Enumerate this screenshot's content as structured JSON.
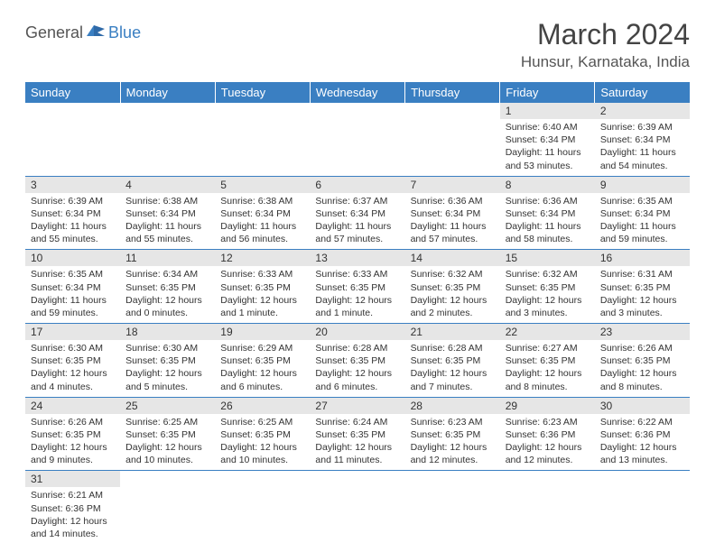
{
  "logo": {
    "general": "General",
    "blue": "Blue"
  },
  "header": {
    "title": "March 2024",
    "location": "Hunsur, Karnataka, India"
  },
  "colors": {
    "header_bg": "#3a7fc2",
    "header_text": "#ffffff",
    "daynum_bg": "#e6e6e6",
    "border": "#3a7fc2",
    "text": "#333333"
  },
  "weekdays": [
    "Sunday",
    "Monday",
    "Tuesday",
    "Wednesday",
    "Thursday",
    "Friday",
    "Saturday"
  ],
  "weeks": [
    [
      null,
      null,
      null,
      null,
      null,
      {
        "n": "1",
        "sunrise": "Sunrise: 6:40 AM",
        "sunset": "Sunset: 6:34 PM",
        "daylight": "Daylight: 11 hours and 53 minutes."
      },
      {
        "n": "2",
        "sunrise": "Sunrise: 6:39 AM",
        "sunset": "Sunset: 6:34 PM",
        "daylight": "Daylight: 11 hours and 54 minutes."
      }
    ],
    [
      {
        "n": "3",
        "sunrise": "Sunrise: 6:39 AM",
        "sunset": "Sunset: 6:34 PM",
        "daylight": "Daylight: 11 hours and 55 minutes."
      },
      {
        "n": "4",
        "sunrise": "Sunrise: 6:38 AM",
        "sunset": "Sunset: 6:34 PM",
        "daylight": "Daylight: 11 hours and 55 minutes."
      },
      {
        "n": "5",
        "sunrise": "Sunrise: 6:38 AM",
        "sunset": "Sunset: 6:34 PM",
        "daylight": "Daylight: 11 hours and 56 minutes."
      },
      {
        "n": "6",
        "sunrise": "Sunrise: 6:37 AM",
        "sunset": "Sunset: 6:34 PM",
        "daylight": "Daylight: 11 hours and 57 minutes."
      },
      {
        "n": "7",
        "sunrise": "Sunrise: 6:36 AM",
        "sunset": "Sunset: 6:34 PM",
        "daylight": "Daylight: 11 hours and 57 minutes."
      },
      {
        "n": "8",
        "sunrise": "Sunrise: 6:36 AM",
        "sunset": "Sunset: 6:34 PM",
        "daylight": "Daylight: 11 hours and 58 minutes."
      },
      {
        "n": "9",
        "sunrise": "Sunrise: 6:35 AM",
        "sunset": "Sunset: 6:34 PM",
        "daylight": "Daylight: 11 hours and 59 minutes."
      }
    ],
    [
      {
        "n": "10",
        "sunrise": "Sunrise: 6:35 AM",
        "sunset": "Sunset: 6:34 PM",
        "daylight": "Daylight: 11 hours and 59 minutes."
      },
      {
        "n": "11",
        "sunrise": "Sunrise: 6:34 AM",
        "sunset": "Sunset: 6:35 PM",
        "daylight": "Daylight: 12 hours and 0 minutes."
      },
      {
        "n": "12",
        "sunrise": "Sunrise: 6:33 AM",
        "sunset": "Sunset: 6:35 PM",
        "daylight": "Daylight: 12 hours and 1 minute."
      },
      {
        "n": "13",
        "sunrise": "Sunrise: 6:33 AM",
        "sunset": "Sunset: 6:35 PM",
        "daylight": "Daylight: 12 hours and 1 minute."
      },
      {
        "n": "14",
        "sunrise": "Sunrise: 6:32 AM",
        "sunset": "Sunset: 6:35 PM",
        "daylight": "Daylight: 12 hours and 2 minutes."
      },
      {
        "n": "15",
        "sunrise": "Sunrise: 6:32 AM",
        "sunset": "Sunset: 6:35 PM",
        "daylight": "Daylight: 12 hours and 3 minutes."
      },
      {
        "n": "16",
        "sunrise": "Sunrise: 6:31 AM",
        "sunset": "Sunset: 6:35 PM",
        "daylight": "Daylight: 12 hours and 3 minutes."
      }
    ],
    [
      {
        "n": "17",
        "sunrise": "Sunrise: 6:30 AM",
        "sunset": "Sunset: 6:35 PM",
        "daylight": "Daylight: 12 hours and 4 minutes."
      },
      {
        "n": "18",
        "sunrise": "Sunrise: 6:30 AM",
        "sunset": "Sunset: 6:35 PM",
        "daylight": "Daylight: 12 hours and 5 minutes."
      },
      {
        "n": "19",
        "sunrise": "Sunrise: 6:29 AM",
        "sunset": "Sunset: 6:35 PM",
        "daylight": "Daylight: 12 hours and 6 minutes."
      },
      {
        "n": "20",
        "sunrise": "Sunrise: 6:28 AM",
        "sunset": "Sunset: 6:35 PM",
        "daylight": "Daylight: 12 hours and 6 minutes."
      },
      {
        "n": "21",
        "sunrise": "Sunrise: 6:28 AM",
        "sunset": "Sunset: 6:35 PM",
        "daylight": "Daylight: 12 hours and 7 minutes."
      },
      {
        "n": "22",
        "sunrise": "Sunrise: 6:27 AM",
        "sunset": "Sunset: 6:35 PM",
        "daylight": "Daylight: 12 hours and 8 minutes."
      },
      {
        "n": "23",
        "sunrise": "Sunrise: 6:26 AM",
        "sunset": "Sunset: 6:35 PM",
        "daylight": "Daylight: 12 hours and 8 minutes."
      }
    ],
    [
      {
        "n": "24",
        "sunrise": "Sunrise: 6:26 AM",
        "sunset": "Sunset: 6:35 PM",
        "daylight": "Daylight: 12 hours and 9 minutes."
      },
      {
        "n": "25",
        "sunrise": "Sunrise: 6:25 AM",
        "sunset": "Sunset: 6:35 PM",
        "daylight": "Daylight: 12 hours and 10 minutes."
      },
      {
        "n": "26",
        "sunrise": "Sunrise: 6:25 AM",
        "sunset": "Sunset: 6:35 PM",
        "daylight": "Daylight: 12 hours and 10 minutes."
      },
      {
        "n": "27",
        "sunrise": "Sunrise: 6:24 AM",
        "sunset": "Sunset: 6:35 PM",
        "daylight": "Daylight: 12 hours and 11 minutes."
      },
      {
        "n": "28",
        "sunrise": "Sunrise: 6:23 AM",
        "sunset": "Sunset: 6:35 PM",
        "daylight": "Daylight: 12 hours and 12 minutes."
      },
      {
        "n": "29",
        "sunrise": "Sunrise: 6:23 AM",
        "sunset": "Sunset: 6:36 PM",
        "daylight": "Daylight: 12 hours and 12 minutes."
      },
      {
        "n": "30",
        "sunrise": "Sunrise: 6:22 AM",
        "sunset": "Sunset: 6:36 PM",
        "daylight": "Daylight: 12 hours and 13 minutes."
      }
    ],
    [
      {
        "n": "31",
        "sunrise": "Sunrise: 6:21 AM",
        "sunset": "Sunset: 6:36 PM",
        "daylight": "Daylight: 12 hours and 14 minutes."
      },
      null,
      null,
      null,
      null,
      null,
      null
    ]
  ]
}
